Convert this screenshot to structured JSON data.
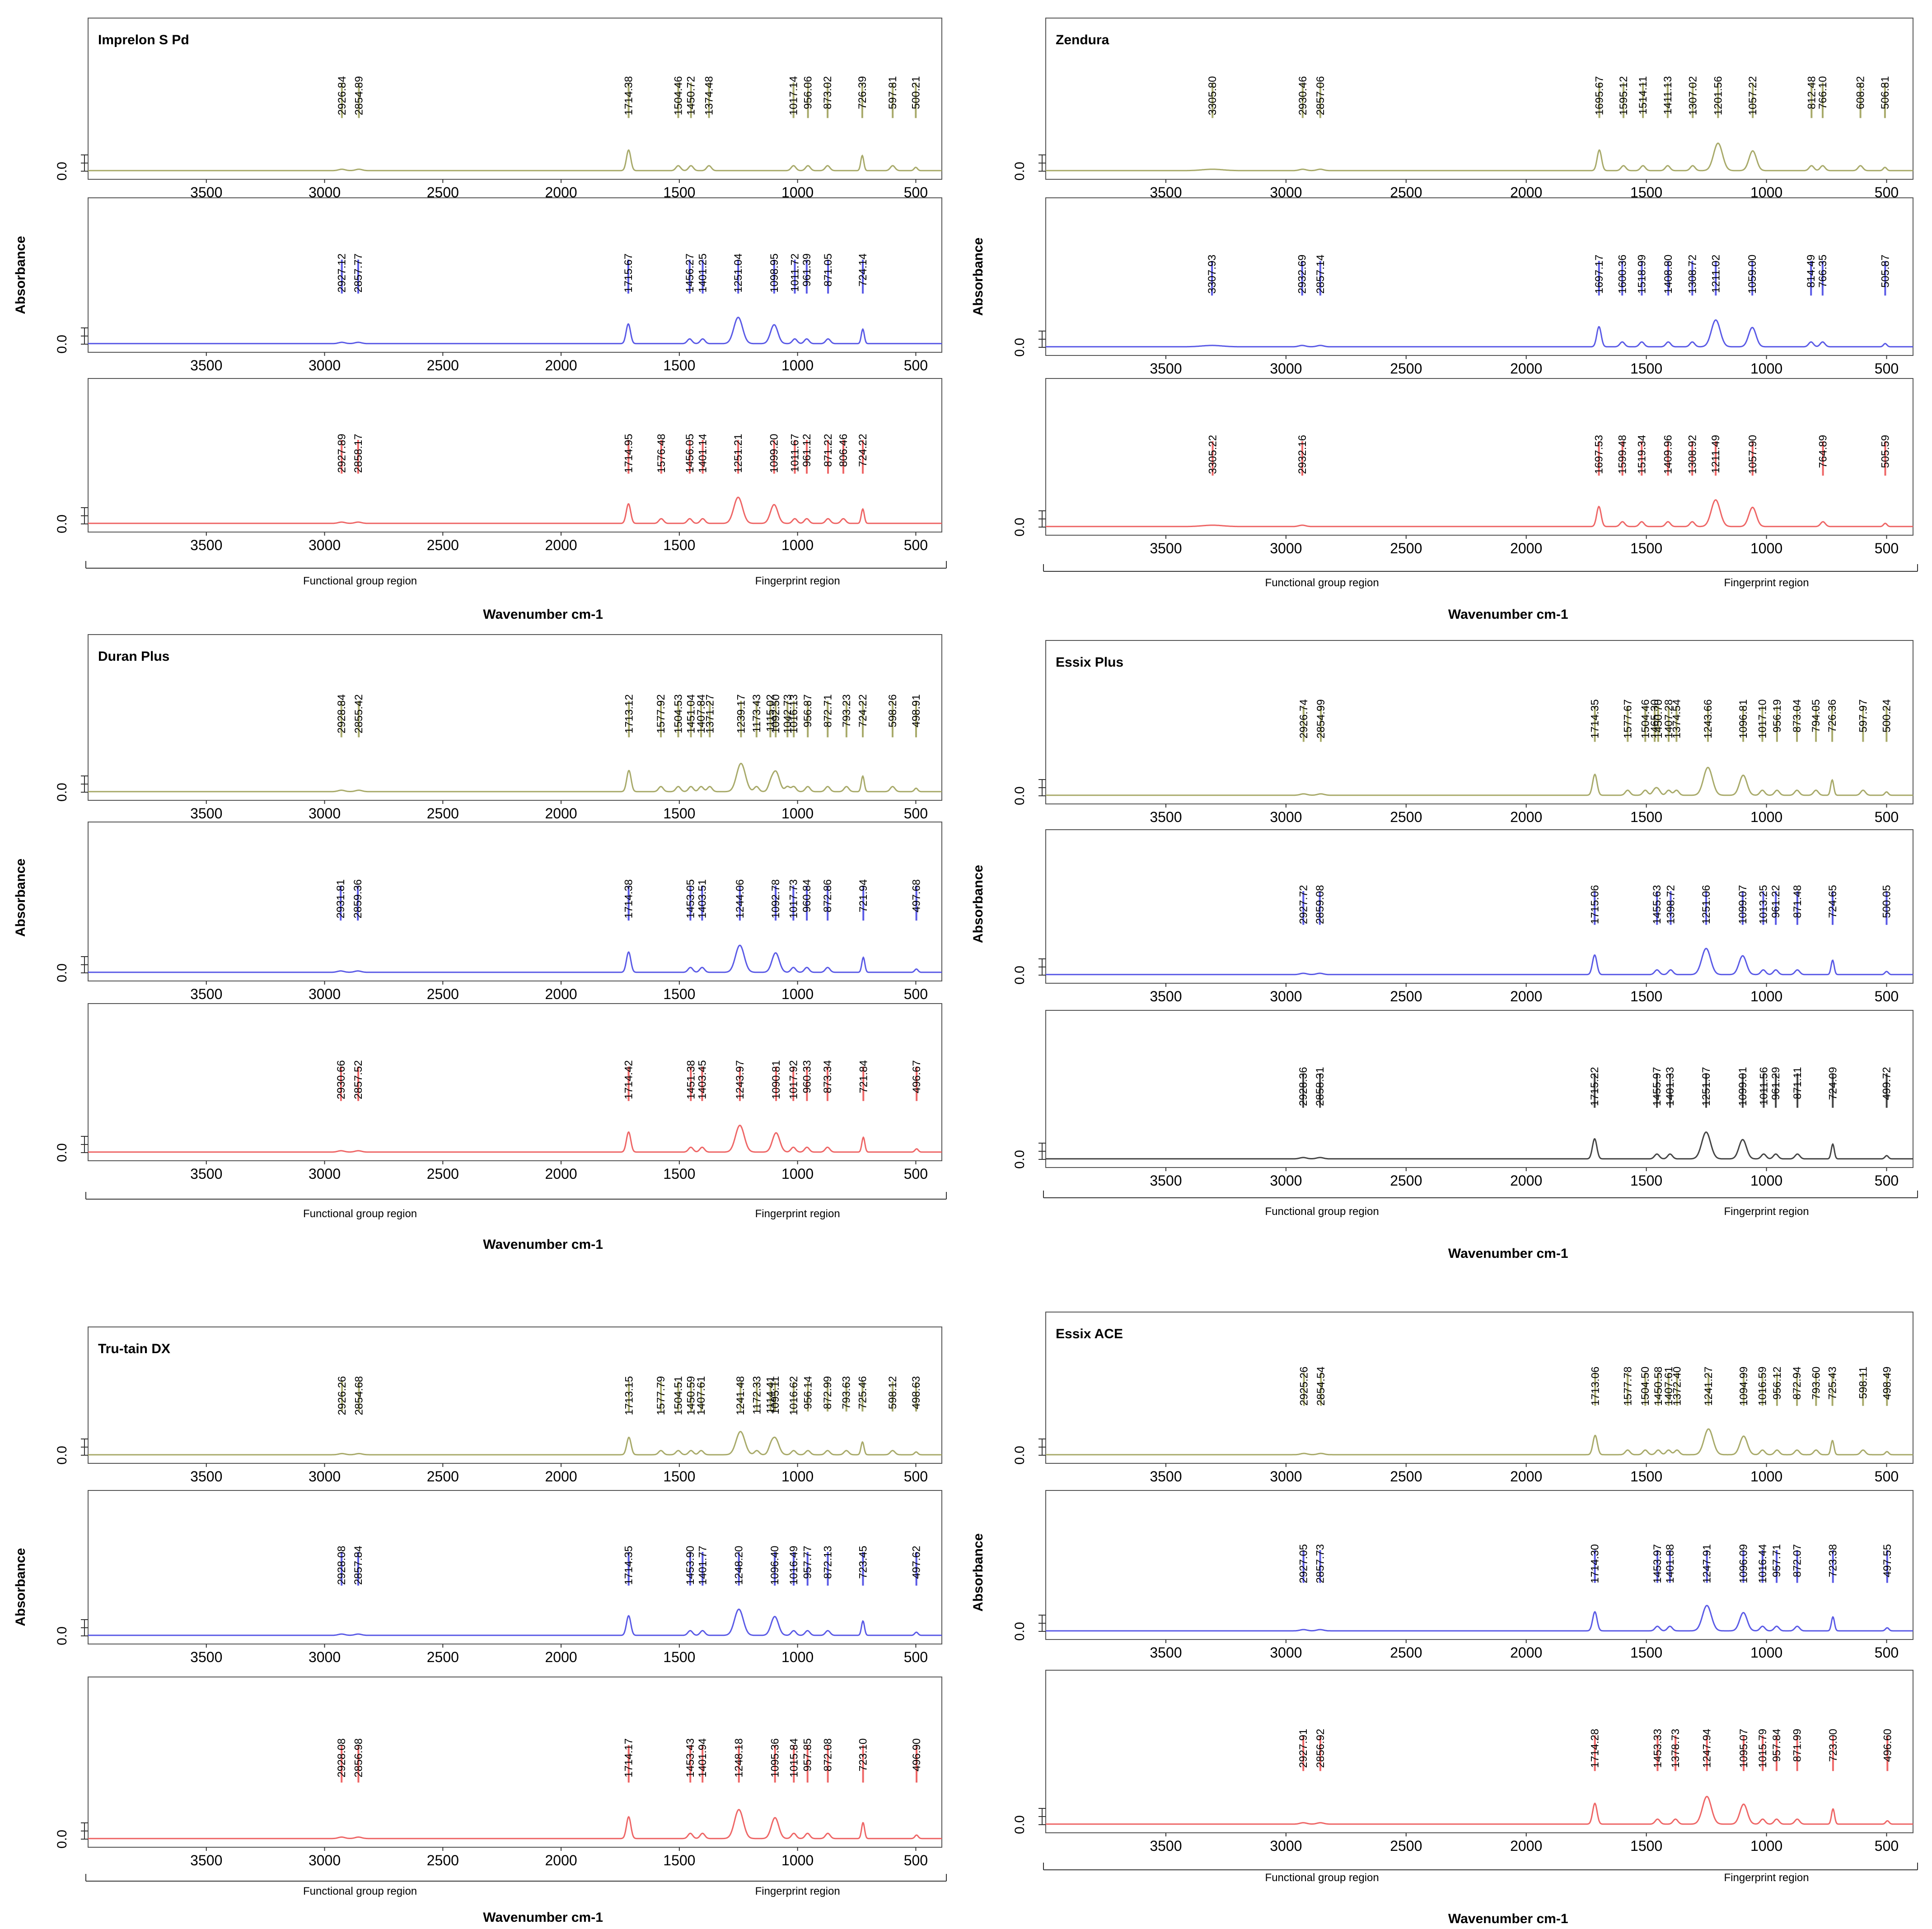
{
  "figure": {
    "tick_labels": [
      "3500",
      "3000",
      "2500",
      "2000",
      "1500",
      "1000",
      "500"
    ],
    "zero_label": "0.0",
    "xlabel": "Wavenumber cm-1",
    "ylabel": "Absorbance",
    "regions": [
      "Functional group region",
      "Fingerprint region"
    ],
    "colors": {
      "olive": "#a8aa6a",
      "blue": "#5a5ae6",
      "red": "#ee6666",
      "black": "#444444"
    }
  },
  "chart_data": [
    {
      "type": "line",
      "title": "Imprelon S Pd",
      "xlabel": "Wavenumber cm-1",
      "ylabel": "Absorbance",
      "xlim": [
        4000,
        400
      ],
      "x_reversed": true,
      "series": [
        {
          "color": "olive",
          "peaks": [
            2926.84,
            2854.89,
            1714.38,
            1504.46,
            1450.72,
            1374.48,
            1017.14,
            956.06,
            873.02,
            726.39,
            597.81,
            500.21
          ]
        },
        {
          "color": "blue",
          "peaks": [
            2927.12,
            2857.77,
            1715.67,
            1456.27,
            1401.25,
            1251.04,
            1098.95,
            1011.72,
            961.39,
            871.05,
            724.14
          ]
        },
        {
          "color": "red",
          "peaks": [
            2927.89,
            2858.17,
            1714.95,
            1576.48,
            1456.05,
            1401.14,
            1251.21,
            1099.2,
            1011.67,
            961.12,
            871.22,
            806.46,
            724.22
          ]
        }
      ]
    },
    {
      "type": "line",
      "title": "Zendura",
      "xlabel": "Wavenumber cm-1",
      "ylabel": "Absorbance",
      "xlim": [
        4000,
        400
      ],
      "x_reversed": true,
      "series": [
        {
          "color": "olive",
          "peaks": [
            3305.8,
            2930.46,
            2857.06,
            1695.67,
            1595.12,
            1514.11,
            1411.13,
            1307.02,
            1201.56,
            1057.22,
            812.48,
            766.1,
            608.82,
            506.81
          ]
        },
        {
          "color": "blue",
          "peaks": [
            3307.93,
            2932.69,
            2857.14,
            1697.17,
            1600.36,
            1518.99,
            1408.8,
            1308.72,
            1211.02,
            1059.0,
            814.49,
            766.35,
            505.87
          ]
        },
        {
          "color": "red",
          "peaks": [
            3305.22,
            2932.16,
            1697.53,
            1599.48,
            1519.34,
            1409.96,
            1308.92,
            1211.49,
            1057.9,
            764.89,
            505.59
          ]
        }
      ]
    },
    {
      "type": "line",
      "title": "Duran Plus",
      "xlabel": "Wavenumber cm-1",
      "ylabel": "Absorbance",
      "xlim": [
        4000,
        400
      ],
      "x_reversed": true,
      "series": [
        {
          "color": "olive",
          "peaks": [
            2928.84,
            2855.42,
            1713.12,
            1577.92,
            1504.53,
            1451.04,
            1407.84,
            1371.27,
            1239.17,
            1173.43,
            1115.02,
            1092.5,
            1042.73,
            1016.13,
            956.87,
            872.71,
            793.23,
            724.22,
            598.26,
            498.91
          ]
        },
        {
          "color": "blue",
          "peaks": [
            2931.81,
            2859.36,
            1714.38,
            1453.05,
            1403.51,
            1244.06,
            1092.78,
            1017.73,
            960.84,
            872.86,
            721.94,
            497.68
          ]
        },
        {
          "color": "red",
          "peaks": [
            2930.66,
            2857.52,
            1714.42,
            1451.38,
            1403.45,
            1243.97,
            1090.81,
            1017.92,
            960.33,
            873.34,
            721.84,
            496.67
          ]
        }
      ]
    },
    {
      "type": "line",
      "title": "Essix Plus",
      "xlabel": "Wavenumber cm-1",
      "ylabel": "Absorbance",
      "xlim": [
        4000,
        400
      ],
      "x_reversed": true,
      "series": [
        {
          "color": "olive",
          "peaks": [
            2926.74,
            2854.99,
            1714.35,
            1577.67,
            1504.46,
            1465.3,
            1450.7,
            1407.28,
            1374.54,
            1243.66,
            1096.81,
            1017.1,
            956.19,
            873.04,
            794.05,
            726.36,
            597.97,
            500.24
          ]
        },
        {
          "color": "blue",
          "peaks": [
            2927.72,
            2859.08,
            1715.06,
            1455.63,
            1398.72,
            1251.06,
            1099.07,
            1013.25,
            961.22,
            871.48,
            724.65,
            500.05
          ]
        },
        {
          "color": "black",
          "peaks": [
            2928.36,
            2858.31,
            1715.22,
            1455.97,
            1401.33,
            1251.07,
            1099.01,
            1011.56,
            961.29,
            871.11,
            724.09,
            499.72
          ]
        }
      ]
    },
    {
      "type": "line",
      "title": "Tru-tain DX",
      "xlabel": "Wavenumber cm-1",
      "ylabel": "Absorbance",
      "xlim": [
        4000,
        400
      ],
      "x_reversed": true,
      "series": [
        {
          "color": "olive",
          "peaks": [
            2926.26,
            2854.68,
            1713.15,
            1577.79,
            1504.51,
            1450.59,
            1407.61,
            1241.48,
            1172.33,
            1114.41,
            1095.11,
            1016.62,
            956.14,
            872.99,
            793.63,
            725.46,
            598.12,
            498.63
          ]
        },
        {
          "color": "blue",
          "peaks": [
            2928.08,
            2857.84,
            1714.35,
            1453.9,
            1401.77,
            1248.2,
            1096.4,
            1016.49,
            957.77,
            872.13,
            723.45,
            497.62
          ]
        },
        {
          "color": "red",
          "peaks": [
            2928.08,
            2856.98,
            1714.17,
            1453.43,
            1401.94,
            1248.18,
            1095.36,
            1015.84,
            957.85,
            872.08,
            723.1,
            496.9
          ]
        }
      ]
    },
    {
      "type": "line",
      "title": "Essix ACE",
      "xlabel": "Wavenumber cm-1",
      "ylabel": "Absorbance",
      "xlim": [
        4000,
        400
      ],
      "x_reversed": true,
      "series": [
        {
          "color": "olive",
          "peaks": [
            2925.26,
            2854.54,
            1713.06,
            1577.78,
            1504.5,
            1450.58,
            1407.61,
            1372.4,
            1241.27,
            1094.99,
            1016.59,
            956.12,
            872.94,
            793.6,
            725.43,
            598.11,
            498.49
          ]
        },
        {
          "color": "blue",
          "peaks": [
            2927.05,
            2857.73,
            1714.3,
            1453.97,
            1401.88,
            1247.91,
            1096.09,
            1016.44,
            957.71,
            872.07,
            723.38,
            497.55
          ]
        },
        {
          "color": "red",
          "peaks": [
            2927.91,
            2856.92,
            1714.28,
            1453.33,
            1378.73,
            1247.94,
            1095.07,
            1015.79,
            957.84,
            871.99,
            723.0,
            496.6
          ]
        }
      ]
    }
  ]
}
